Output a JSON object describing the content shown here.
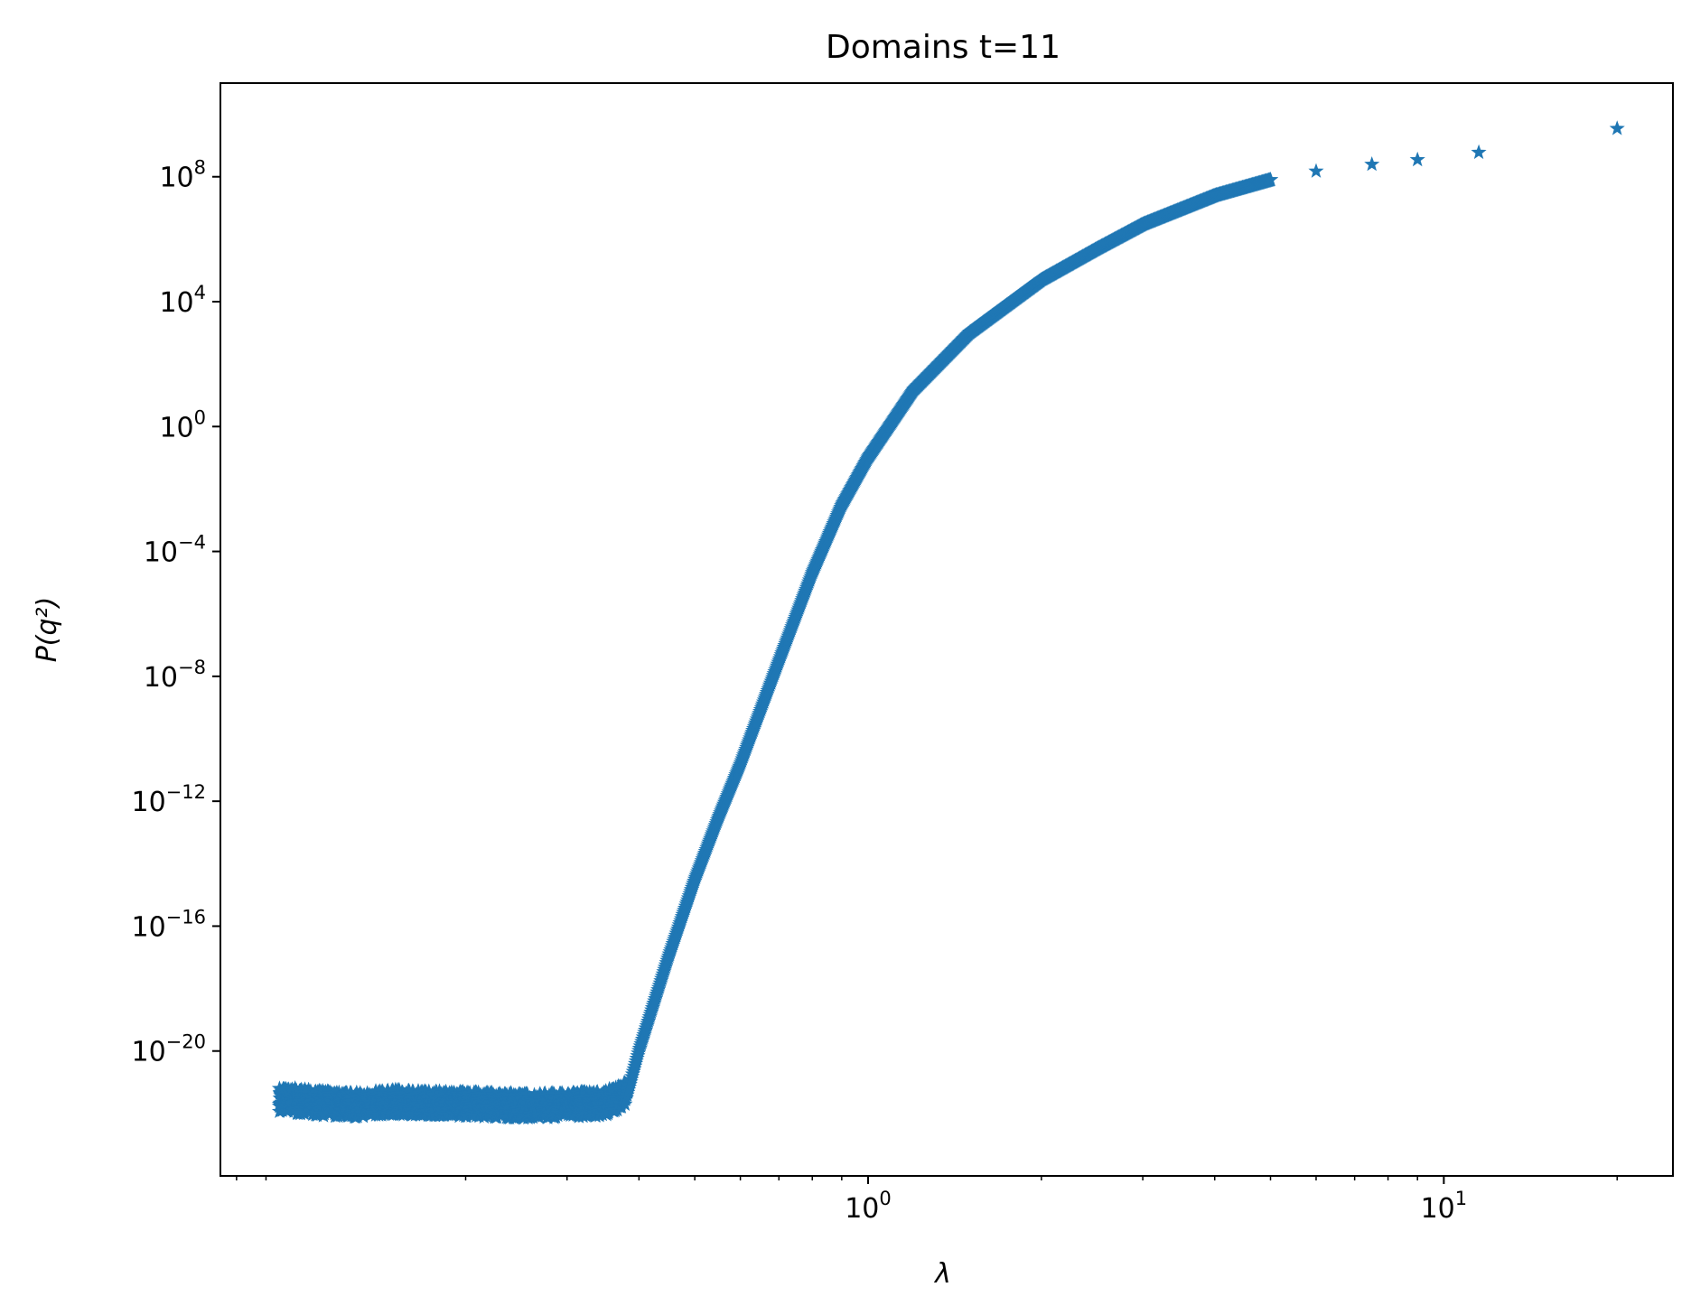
{
  "chart_data": {
    "type": "scatter",
    "title": "Domains t=11",
    "xlabel": "λ",
    "ylabel": "P(q²)",
    "x_scale": "log",
    "y_scale": "log",
    "xlim": [
      0.075,
      25
    ],
    "ylim": [
      1e-24,
      100000000000.0
    ],
    "x_ticks": [
      {
        "value": 1,
        "base": "10",
        "exp": "0"
      },
      {
        "value": 10,
        "base": "10",
        "exp": "1"
      }
    ],
    "y_ticks": [
      {
        "value": 100000000.0,
        "base": "10",
        "exp": "8"
      },
      {
        "value": 10000.0,
        "base": "10",
        "exp": "4"
      },
      {
        "value": 1.0,
        "base": "10",
        "exp": "0"
      },
      {
        "value": 0.0001,
        "base": "10",
        "exp": "−4"
      },
      {
        "value": 1e-08,
        "base": "10",
        "exp": "−8"
      },
      {
        "value": 1e-12,
        "base": "10",
        "exp": "−12"
      },
      {
        "value": 1e-16,
        "base": "10",
        "exp": "−16"
      },
      {
        "value": 1e-20,
        "base": "10",
        "exp": "−20"
      }
    ],
    "marker": "star",
    "color": "#1f77b4",
    "grid": false,
    "series": [
      {
        "values": [
          {
            "x": 0.095,
            "y": 2e-22
          },
          {
            "x": 0.11,
            "y": 1.5e-22
          },
          {
            "x": 0.13,
            "y": 1.3e-22
          },
          {
            "x": 0.15,
            "y": 1.6e-22
          },
          {
            "x": 0.2,
            "y": 1.4e-22
          },
          {
            "x": 0.25,
            "y": 1.2e-22
          },
          {
            "x": 0.3,
            "y": 1.3e-22
          },
          {
            "x": 0.35,
            "y": 1.5e-22
          },
          {
            "x": 0.38,
            "y": 3e-22
          },
          {
            "x": 0.4,
            "y": 1e-20
          },
          {
            "x": 0.45,
            "y": 1e-17
          },
          {
            "x": 0.5,
            "y": 3e-15
          },
          {
            "x": 0.55,
            "y": 3e-13
          },
          {
            "x": 0.6,
            "y": 1.5e-11
          },
          {
            "x": 0.7,
            "y": 3e-08
          },
          {
            "x": 0.8,
            "y": 2e-05
          },
          {
            "x": 0.9,
            "y": 0.003
          },
          {
            "x": 1.0,
            "y": 0.1
          },
          {
            "x": 1.2,
            "y": 15
          },
          {
            "x": 1.5,
            "y": 1000
          },
          {
            "x": 2.0,
            "y": 50000
          },
          {
            "x": 2.5,
            "y": 500000
          },
          {
            "x": 3.0,
            "y": 3000000
          },
          {
            "x": 4.0,
            "y": 25000000
          },
          {
            "x": 5.0,
            "y": 80000000
          },
          {
            "x": 6.0,
            "y": 150000000
          },
          {
            "x": 7.5,
            "y": 250000000
          },
          {
            "x": 9.0,
            "y": 350000000
          },
          {
            "x": 11.5,
            "y": 600000000
          },
          {
            "x": 20.0,
            "y": 3500000000
          }
        ]
      }
    ]
  }
}
